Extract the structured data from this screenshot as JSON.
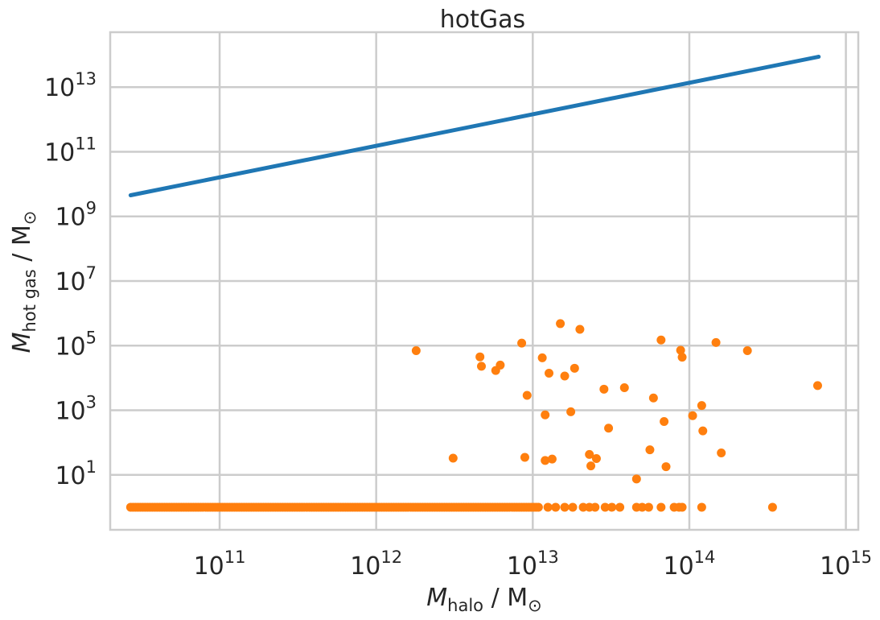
{
  "chart_data": {
    "type": "scatter",
    "title": "hotGas",
    "xlabel_main": "M",
    "xlabel_sub": "halo",
    "xlabel_unit": " / M",
    "ylabel_main": "M",
    "ylabel_sub": "hot gas",
    "ylabel_unit": " / M",
    "xscale": "log",
    "yscale": "log",
    "xlim": [
      20000000000.0,
      1200000000000000.0
    ],
    "ylim": [
      0.2,
      500000000000000.0
    ],
    "grid": true,
    "xticks": [
      {
        "value": 100000000000.0,
        "base": "10",
        "exp": "11"
      },
      {
        "value": 1000000000000.0,
        "base": "10",
        "exp": "12"
      },
      {
        "value": 10000000000000.0,
        "base": "10",
        "exp": "13"
      },
      {
        "value": 100000000000000.0,
        "base": "10",
        "exp": "14"
      },
      {
        "value": 1000000000000000.0,
        "base": "10",
        "exp": "15"
      }
    ],
    "yticks": [
      {
        "value": 10.0,
        "base": "10",
        "exp": "1"
      },
      {
        "value": 1000.0,
        "base": "10",
        "exp": "3"
      },
      {
        "value": 100000.0,
        "base": "10",
        "exp": "5"
      },
      {
        "value": 10000000.0,
        "base": "10",
        "exp": "7"
      },
      {
        "value": 1000000000.0,
        "base": "10",
        "exp": "9"
      },
      {
        "value": 100000000000.0,
        "base": "10",
        "exp": "11"
      },
      {
        "value": 10000000000000.0,
        "base": "10",
        "exp": "13"
      }
    ],
    "series": [
      {
        "kind": "line",
        "color": "#1f77b4",
        "x": [
          27000000000.0,
          670000000000000.0
        ],
        "y": [
          4500000000.0,
          87000000000000.0
        ]
      },
      {
        "kind": "scatter",
        "color": "#ff7f0e",
        "x": [
          1800000000000.0,
          4600000000000.0,
          4700000000000.0,
          5800000000000.0,
          6200000000000.0,
          8500000000000.0,
          9200000000000.0,
          11500000000000.0,
          12000000000000.0,
          12700000000000.0,
          15000000000000.0,
          16000000000000.0,
          17500000000000.0,
          18500000000000.0,
          20000000000000.0,
          28500000000000.0,
          38500000000000.0,
          59000000000000.0,
          66000000000000.0,
          88000000000000.0,
          90000000000000.0,
          148000000000000.0,
          235000000000000.0,
          660000000000000.0,
          3100000000000.0,
          8900000000000.0,
          12000000000000.0,
          13300000000000.0,
          23000000000000.0,
          23500000000000.0,
          25500000000000.0,
          30500000000000.0,
          46000000000000.0,
          56000000000000.0,
          69000000000000.0,
          71000000000000.0,
          105000000000000.0,
          120000000000000.0,
          122000000000000.0,
          160000000000000.0
        ],
        "y": [
          70000.0,
          45000.0,
          23000.0,
          17000.0,
          25000.0,
          120000.0,
          2900.0,
          42000.0,
          720.0,
          14000.0,
          480000.0,
          11500.0,
          900.0,
          20000.0,
          320000.0,
          4500.0,
          5000.0,
          2400.0,
          150000.0,
          72000.0,
          44000.0,
          125000.0,
          70000.0,
          5800.0,
          33,
          35,
          28,
          31,
          43,
          19,
          32,
          280.0,
          7.5,
          60,
          450.0,
          18,
          680.0,
          1400.0,
          230.0,
          48
        ]
      },
      {
        "kind": "floor",
        "color": "#ff7f0e",
        "y_value": 1.0,
        "x_dense_range": [
          27000000000.0,
          11000000000000.0
        ],
        "x_sparse": [
          12500000000000.0,
          14000000000000.0,
          16000000000000.0,
          18000000000000.0,
          21000000000000.0,
          23000000000000.0,
          25000000000000.0,
          29000000000000.0,
          32000000000000.0,
          36000000000000.0,
          46000000000000.0,
          50000000000000.0,
          55000000000000.0,
          66000000000000.0,
          80000000000000.0,
          86000000000000.0,
          90000000000000.0,
          120000000000000.0,
          340000000000000.0
        ]
      }
    ]
  }
}
